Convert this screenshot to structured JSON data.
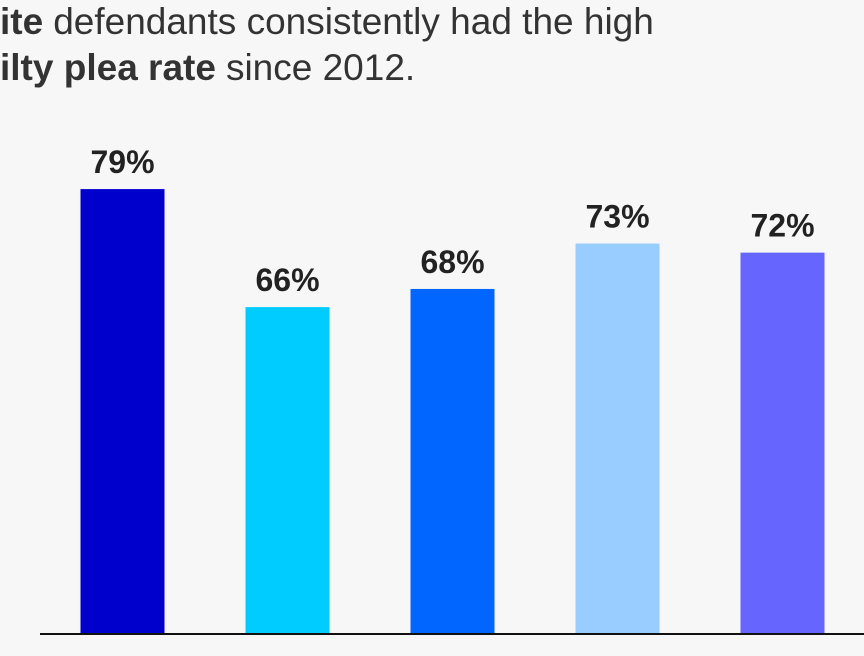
{
  "chart_data": {
    "type": "bar",
    "title_lines": [
      [
        {
          "text": "ite",
          "bold": true
        },
        {
          "text": "defendants consistently had the high",
          "bold": false
        }
      ],
      [
        {
          "text": "ilty plea rate",
          "bold": true
        },
        {
          "text": "since 2012.",
          "bold": false
        }
      ]
    ],
    "categories": [
      null,
      null,
      null,
      null,
      null
    ],
    "values": [
      79,
      66,
      68,
      73,
      72
    ],
    "value_labels": [
      "79%",
      "66%",
      "68%",
      "73%",
      "72%"
    ],
    "colors": [
      "#0000cc",
      "#00ccff",
      "#0066ff",
      "#99ccff",
      "#6666ff"
    ],
    "ylim": [
      30,
      80
    ]
  }
}
